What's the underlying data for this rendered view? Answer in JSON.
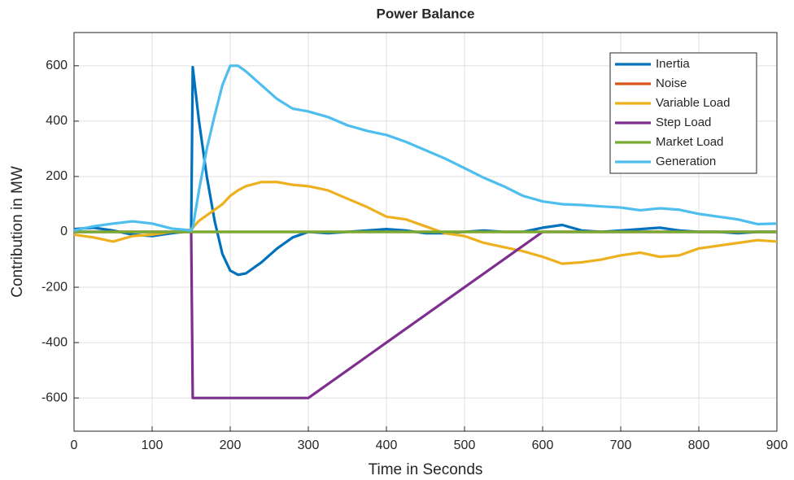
{
  "chart_data": {
    "type": "line",
    "title": "Power Balance",
    "xlabel": "Time in Seconds",
    "ylabel": "Contribution in MW",
    "x": [
      0,
      25,
      50,
      75,
      100,
      125,
      140,
      150,
      152,
      160,
      170,
      180,
      190,
      200,
      210,
      220,
      240,
      260,
      280,
      300,
      325,
      350,
      375,
      400,
      425,
      450,
      475,
      500,
      525,
      550,
      575,
      600,
      625,
      650,
      675,
      700,
      725,
      750,
      775,
      800,
      825,
      850,
      875,
      900
    ],
    "series": [
      {
        "name": "Inertia",
        "color": "#0072bd",
        "values": [
          10,
          15,
          5,
          -10,
          -15,
          -5,
          0,
          5,
          595,
          400,
          200,
          40,
          -80,
          -140,
          -155,
          -150,
          -110,
          -60,
          -20,
          0,
          -5,
          0,
          5,
          10,
          5,
          -5,
          -5,
          0,
          5,
          0,
          0,
          15,
          25,
          5,
          0,
          5,
          10,
          15,
          5,
          0,
          0,
          -5,
          0,
          0
        ]
      },
      {
        "name": "Noise",
        "color": "#d95319",
        "values": [
          0,
          0,
          0,
          0,
          0,
          0,
          0,
          0,
          0,
          0,
          0,
          0,
          0,
          0,
          0,
          0,
          0,
          0,
          0,
          0,
          0,
          0,
          0,
          0,
          0,
          0,
          0,
          0,
          0,
          0,
          0,
          0,
          0,
          0,
          0,
          0,
          0,
          0,
          0,
          0,
          0,
          0,
          0,
          0
        ]
      },
      {
        "name": "Variable Load",
        "color": "#edb120",
        "values": [
          -10,
          -20,
          -35,
          -15,
          -10,
          0,
          0,
          10,
          15,
          40,
          60,
          80,
          100,
          130,
          150,
          165,
          180,
          180,
          170,
          165,
          150,
          120,
          90,
          55,
          45,
          20,
          -5,
          -15,
          -40,
          -55,
          -70,
          -90,
          -115,
          -110,
          -100,
          -85,
          -75,
          -90,
          -85,
          -60,
          -50,
          -40,
          -30,
          -35
        ]
      },
      {
        "name": "Step Load",
        "color": "#7e2f8e",
        "values": [
          0,
          0,
          0,
          0,
          0,
          0,
          0,
          0,
          -600,
          -600,
          -600,
          -600,
          -600,
          -600,
          -600,
          -600,
          -600,
          -600,
          -600,
          -600,
          -550,
          -500,
          -450,
          -400,
          -350,
          -300,
          -250,
          -200,
          -150,
          -100,
          -50,
          0,
          0,
          0,
          0,
          0,
          0,
          0,
          0,
          0,
          0,
          0,
          0,
          0
        ]
      },
      {
        "name": "Market Load",
        "color": "#77ac30",
        "values": [
          0,
          0,
          0,
          0,
          0,
          0,
          0,
          0,
          0,
          0,
          0,
          0,
          0,
          0,
          0,
          0,
          0,
          0,
          0,
          0,
          0,
          0,
          0,
          0,
          0,
          0,
          0,
          0,
          0,
          0,
          0,
          0,
          0,
          0,
          0,
          0,
          0,
          0,
          0,
          0,
          0,
          0,
          0,
          0
        ]
      },
      {
        "name": "Generation",
        "color": "#4dbeee",
        "values": [
          5,
          20,
          30,
          38,
          30,
          12,
          8,
          5,
          15,
          150,
          300,
          420,
          530,
          600,
          600,
          580,
          530,
          480,
          445,
          435,
          415,
          385,
          365,
          350,
          325,
          295,
          265,
          230,
          195,
          165,
          130,
          110,
          100,
          97,
          92,
          88,
          78,
          85,
          80,
          65,
          55,
          45,
          28,
          30
        ]
      }
    ],
    "xlim": [
      0,
      900
    ],
    "xticks": [
      0,
      100,
      200,
      300,
      400,
      500,
      600,
      700,
      800,
      900
    ],
    "ylim": [
      -720,
      720
    ],
    "yticks": [
      -600,
      -400,
      -200,
      0,
      200,
      400,
      600
    ],
    "grid": true,
    "legend": "northeast"
  }
}
